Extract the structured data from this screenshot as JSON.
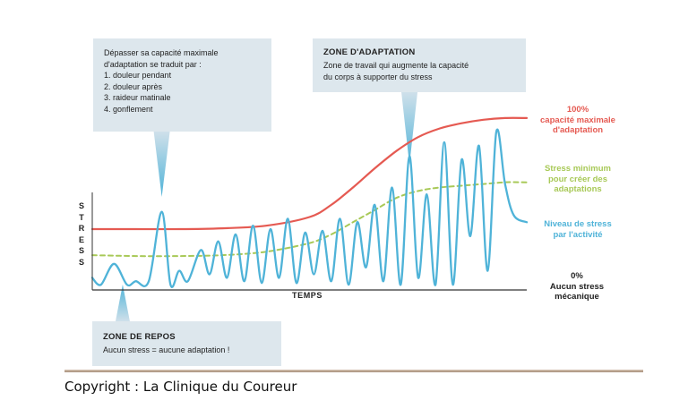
{
  "chart_data": {
    "type": "line",
    "title": "",
    "xlabel": "TEMPS",
    "ylabel": "STRESS",
    "ylim": [
      0,
      100
    ],
    "grid": false,
    "legend": "direct labels on the right",
    "colors": {
      "max_capacity": "#e55a52",
      "min_stress": "#a8c957",
      "activity": "#4fb3d8",
      "axis": "#333333",
      "callout_bg": "#dde7ed"
    },
    "series": [
      {
        "key": "max_capacity",
        "name": "100% capacité maximale d'adaptation",
        "x": [
          0,
          10,
          20,
          30,
          40,
          50,
          55,
          60,
          65,
          70,
          75,
          80,
          85,
          90,
          95,
          100
        ],
        "y": [
          34,
          34,
          34,
          34.5,
          36,
          41,
          48,
          58,
          69,
          79,
          87,
          92,
          95,
          97,
          98,
          98
        ]
      },
      {
        "key": "min_stress",
        "name": "Stress minimum pour créer des adaptations",
        "x": [
          0,
          10,
          20,
          30,
          40,
          50,
          55,
          60,
          65,
          70,
          75,
          80,
          85,
          90,
          95,
          100
        ],
        "y": [
          19,
          18.5,
          18.5,
          19,
          21,
          26,
          31,
          38,
          45,
          52,
          56,
          58,
          59,
          60,
          61,
          61
        ]
      },
      {
        "key": "activity",
        "name": "Niveau de stress par l'activité",
        "x": [
          0,
          2,
          5,
          8,
          10,
          13,
          16,
          18,
          20,
          22,
          25,
          27,
          29,
          31,
          33,
          35,
          37,
          39,
          41,
          43,
          45,
          47,
          49,
          51,
          53,
          55,
          57,
          59,
          61,
          63,
          65,
          67,
          69,
          71,
          73,
          75,
          77,
          79,
          81,
          83,
          85,
          87,
          89,
          91,
          93,
          95,
          97,
          100
        ],
        "y": [
          6,
          2,
          14,
          2,
          4,
          4,
          44,
          2,
          10,
          4,
          22,
          8,
          27,
          6,
          31,
          4,
          36,
          3,
          34,
          6,
          40,
          3,
          32,
          8,
          33,
          4,
          40,
          2,
          38,
          12,
          48,
          4,
          58,
          2,
          76,
          6,
          54,
          2,
          84,
          2,
          74,
          30,
          82,
          10,
          90,
          60,
          42,
          38
        ]
      }
    ],
    "labels": {
      "max": [
        "100%",
        "capacité maximale",
        "d'adaptation"
      ],
      "min": [
        "Stress minimum",
        "pour créer des",
        "adaptations"
      ],
      "activity": [
        "Niveau de stress",
        "par l'activité"
      ],
      "zero": [
        "0%",
        "Aucun stress",
        "mécanique"
      ]
    },
    "annotations": [
      {
        "key": "overload",
        "title": "",
        "lines": [
          "Dépasser sa capacité maximale",
          "d'adaptation se traduit par :",
          "1.  douleur pendant",
          "2. douleur après",
          "3. raideur matinale",
          "4. gonflement"
        ],
        "points_to_x": 16
      },
      {
        "key": "adaptation",
        "title": "ZONE D'ADAPTATION",
        "lines": [
          "Zone de travail qui augmente la capacité",
          "du corps à supporter du stress"
        ],
        "points_to_x": 73
      },
      {
        "key": "rest",
        "title": "ZONE DE REPOS",
        "lines": [
          "Aucun stress = aucune adaptation !"
        ],
        "points_to_x": 7
      }
    ]
  },
  "footer": {
    "copyright": "Copyright : La Clinique du Coureur"
  }
}
